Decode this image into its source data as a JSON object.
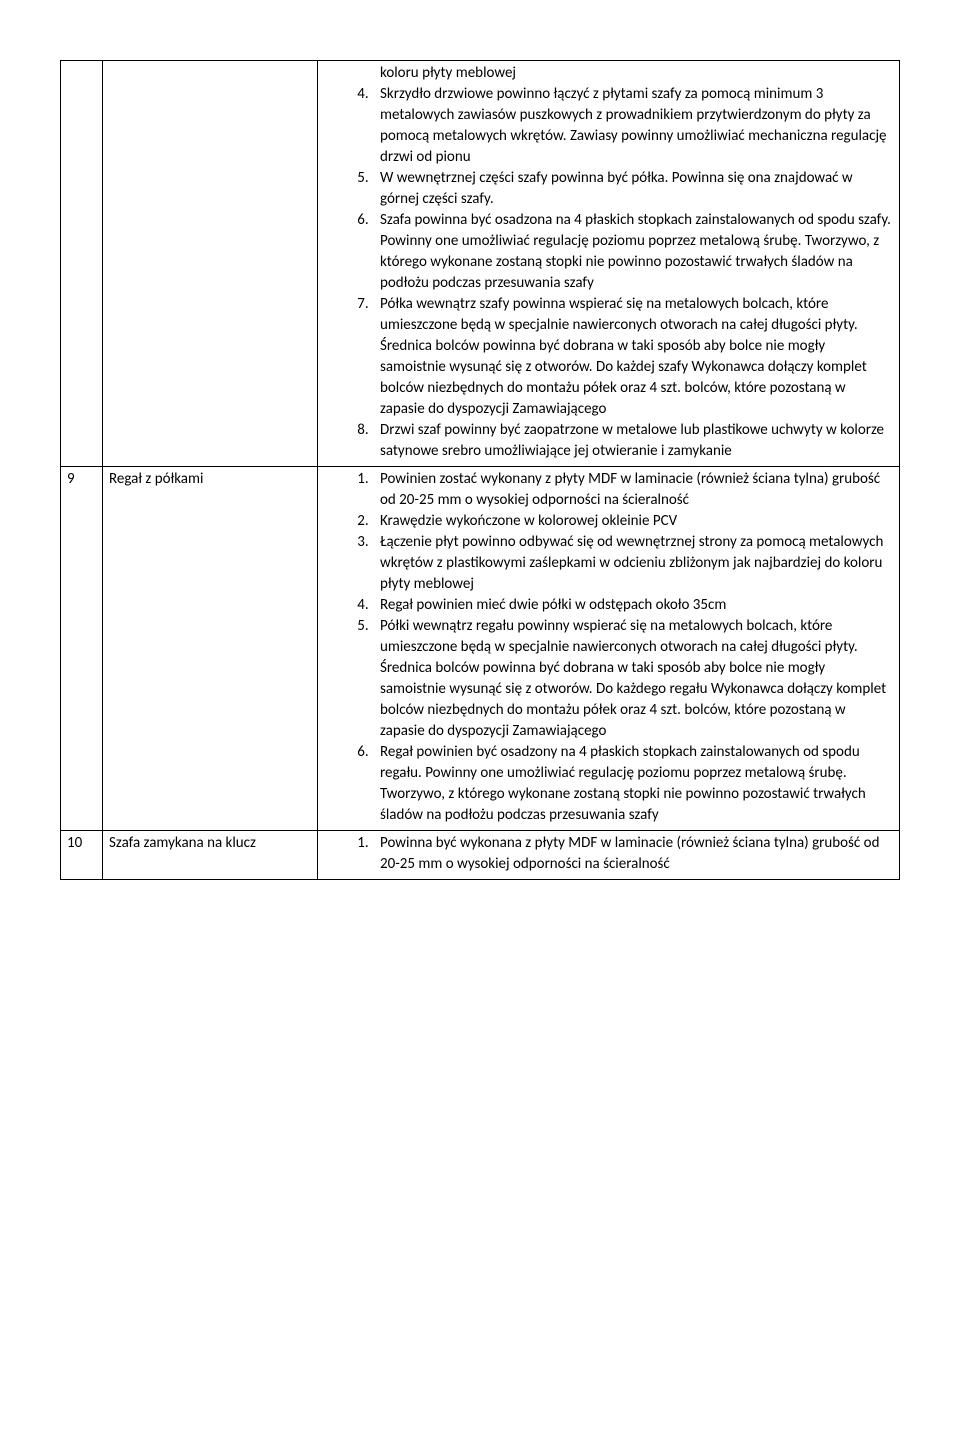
{
  "rows": [
    {
      "num": "",
      "name": "",
      "pre_text": "koloru płyty meblowej",
      "start": 4,
      "items": [
        "Skrzydło drzwiowe powinno łączyć z płytami szafy za pomocą minimum 3 metalowych zawiasów puszkowych z prowadnikiem przytwierdzonym do płyty za pomocą metalowych wkrętów. Zawiasy powinny umożliwiać mechaniczna regulację drzwi od pionu",
        "W wewnętrznej części szafy powinna być półka. Powinna się ona znajdować w górnej części szafy.",
        "Szafa powinna być osadzona na 4 płaskich stopkach zainstalowanych od spodu szafy. Powinny one umożliwiać regulację poziomu poprzez metalową śrubę. Tworzywo, z którego wykonane zostaną stopki nie powinno pozostawić trwałych śladów na podłożu podczas przesuwania szafy",
        "Półka wewnątrz szafy powinna wspierać się na metalowych bolcach, które umieszczone będą w specjalnie nawierconych otworach na całej długości płyty. Średnica bolców powinna być dobrana w taki sposób aby bolce nie mogły samoistnie wysunąć się z otworów. Do każdej szafy Wykonawca dołączy komplet bolców niezbędnych do montażu półek oraz 4 szt. bolców, które pozostaną w zapasie do dyspozycji Zamawiającego",
        "Drzwi szaf powinny być zaopatrzone w metalowe lub plastikowe uchwyty w kolorze satynowe srebro umożliwiające jej otwieranie i zamykanie"
      ]
    },
    {
      "num": "9",
      "name": "Regał z półkami",
      "pre_text": "",
      "start": 1,
      "items": [
        "Powinien zostać wykonany z płyty MDF w laminacie (również ściana tylna) grubość od 20-25 mm o wysokiej odporności na ścieralność",
        "Krawędzie wykończone w kolorowej okleinie PCV",
        "Łączenie płyt powinno odbywać się od wewnętrznej strony za pomocą metalowych wkrętów z plastikowymi zaślepkami w odcieniu zbliżonym jak najbardziej do koloru płyty meblowej",
        "Regał powinien mieć dwie półki w odstępach około 35cm",
        "Półki wewnątrz regału powinny wspierać się na metalowych bolcach, które umieszczone będą w specjalnie nawierconych otworach na całej długości płyty. Średnica bolców powinna być dobrana w taki sposób aby bolce nie mogły samoistnie wysunąć się z otworów. Do każdego regału Wykonawca dołączy komplet bolców niezbędnych do montażu półek oraz 4 szt. bolców, które pozostaną w zapasie do dyspozycji Zamawiającego",
        "Regał  powinien być osadzony na 4 płaskich stopkach zainstalowanych od spodu regału. Powinny one umożliwiać regulację poziomu poprzez metalową śrubę. Tworzywo, z którego wykonane zostaną stopki nie powinno pozostawić trwałych śladów na podłożu podczas przesuwania szafy"
      ]
    },
    {
      "num": "10",
      "name": "Szafa zamykana na klucz",
      "pre_text": "",
      "start": 1,
      "items": [
        "Powinna być wykonana z płyty MDF w laminacie (również ściana tylna) grubość od 20-25 mm o wysokiej odporności na ścieralność"
      ]
    }
  ]
}
